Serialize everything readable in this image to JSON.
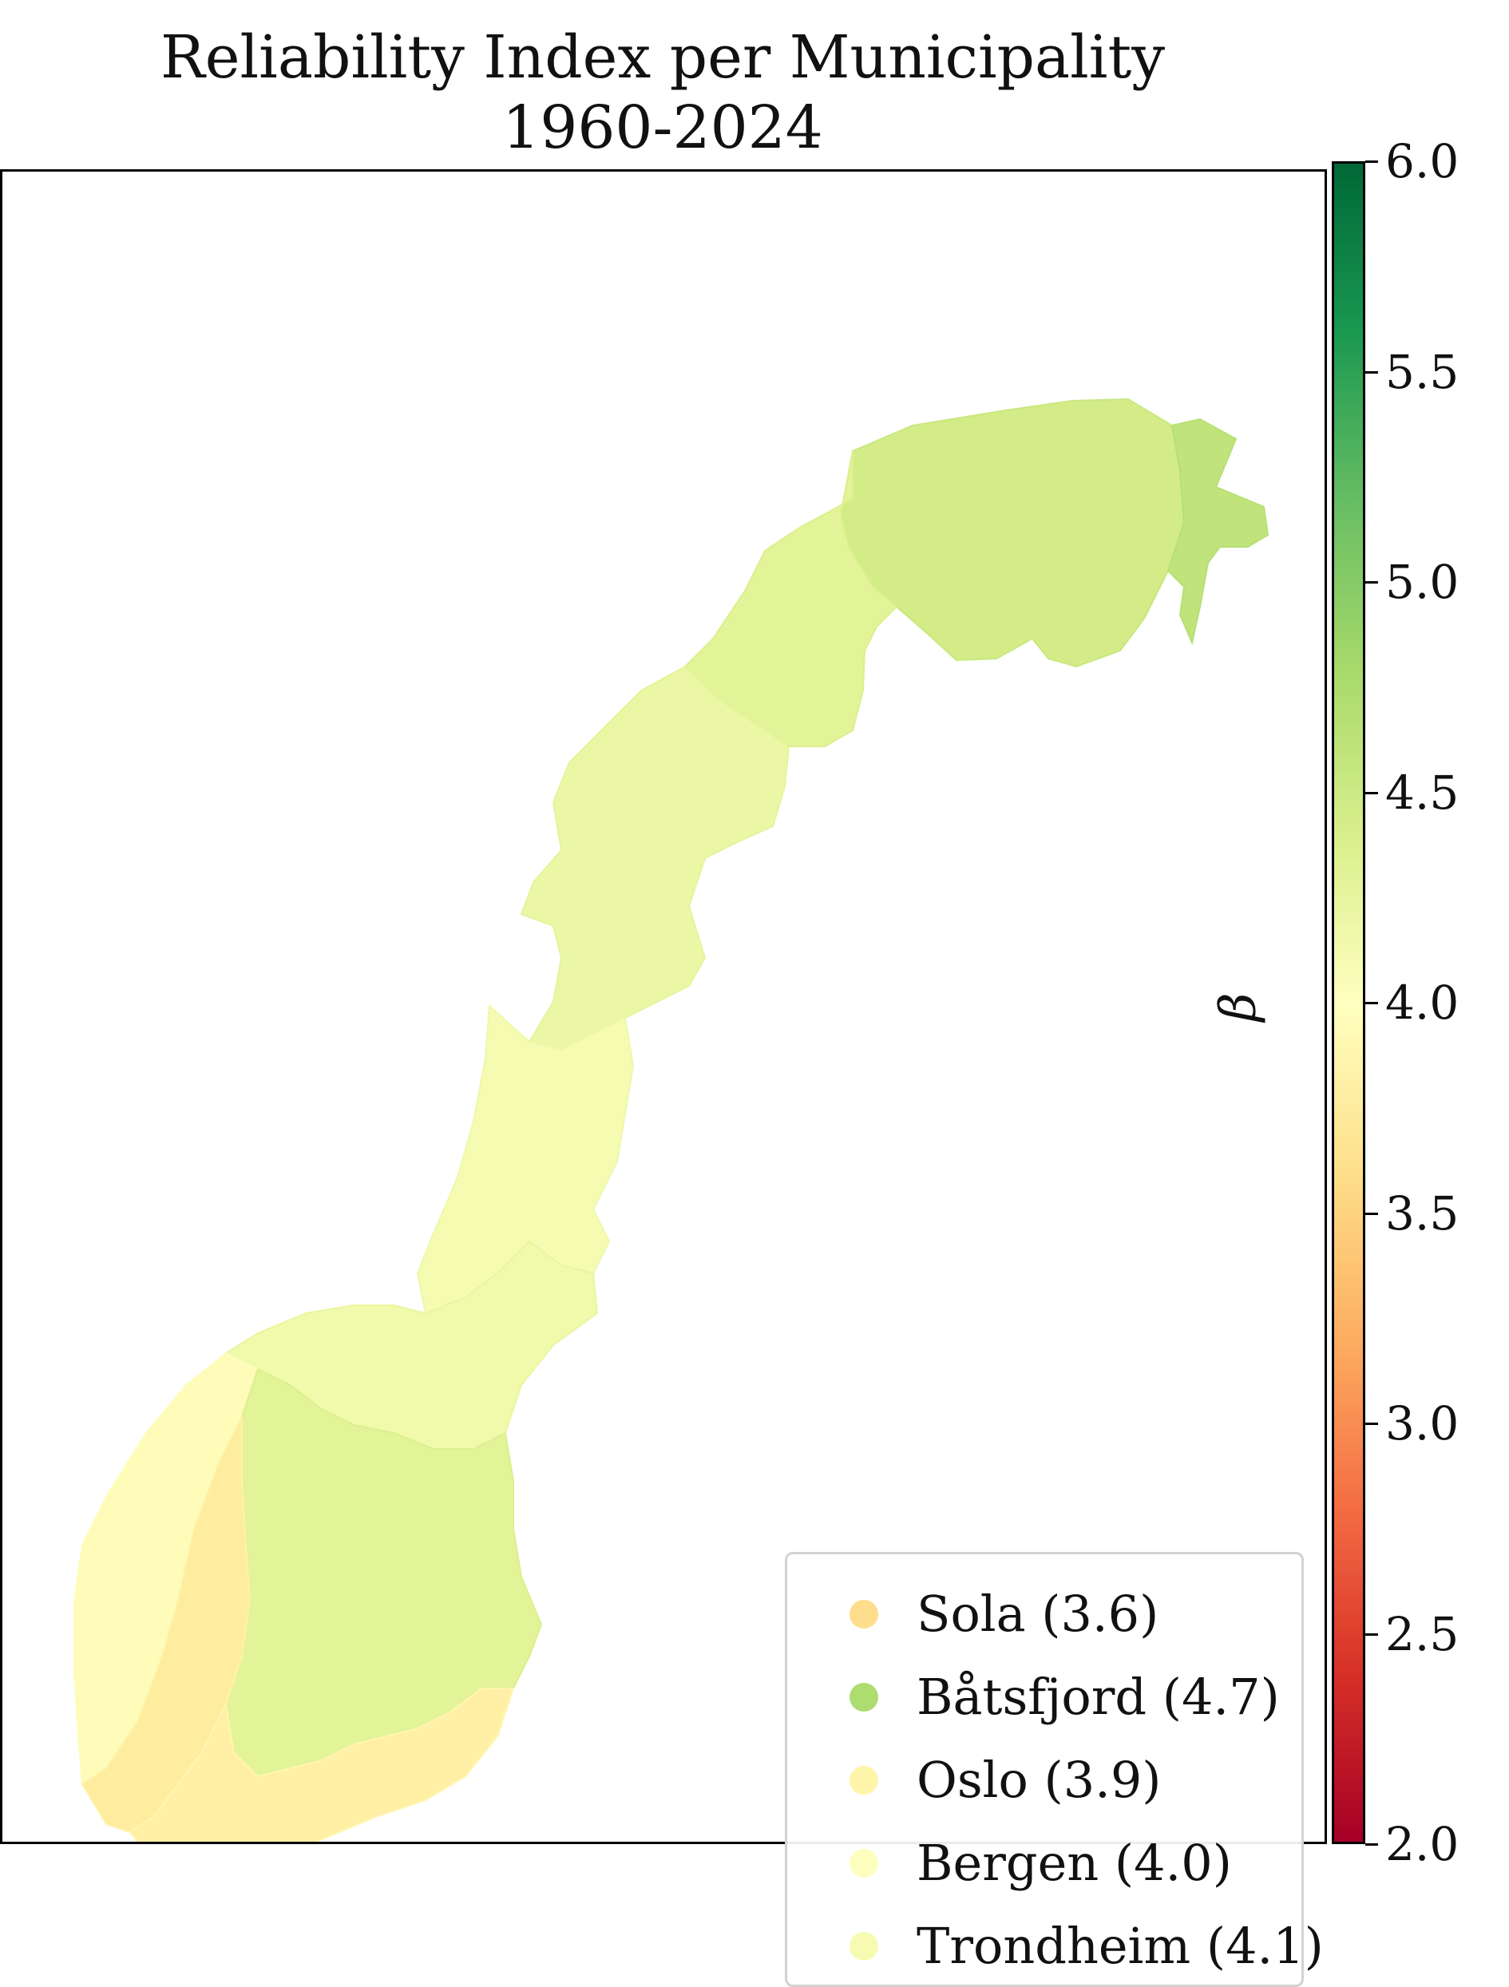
{
  "title": {
    "line1": "Reliability Index per Municipality",
    "line2": "1960-2024"
  },
  "colorbar": {
    "label": "β",
    "min": 2.0,
    "max": 6.0,
    "ticks": [
      "6.0",
      "5.5",
      "5.0",
      "4.5",
      "4.0",
      "3.5",
      "3.0",
      "2.5",
      "2.0"
    ],
    "colormap": [
      "#a50026",
      "#d73027",
      "#f46d43",
      "#fdae61",
      "#fee08b",
      "#ffffbf",
      "#d9ef8b",
      "#a6d96a",
      "#66bd63",
      "#1a9850",
      "#006837"
    ]
  },
  "legend": {
    "items": [
      {
        "label": "Sola (3.6)",
        "color": "#fedd8c"
      },
      {
        "label": "Båtsfjord (4.7)",
        "color": "#addc6f"
      },
      {
        "label": "Oslo (3.9)",
        "color": "#fef5ab"
      },
      {
        "label": "Bergen (4.0)",
        "color": "#fefebe"
      },
      {
        "label": "Trondheim (4.1)",
        "color": "#f6fbb1"
      }
    ]
  },
  "map": {
    "region": "Norway",
    "regions": [
      {
        "name": "finnmark",
        "value": 4.45
      },
      {
        "name": "east-finnmark",
        "value": 4.6
      },
      {
        "name": "troms",
        "value": 4.3
      },
      {
        "name": "nordland-north",
        "value": 4.2
      },
      {
        "name": "nordland-south",
        "value": 4.1
      },
      {
        "name": "trondelag",
        "value": 4.15
      },
      {
        "name": "west-coast",
        "value": 3.95
      },
      {
        "name": "innlandet",
        "value": 4.3
      },
      {
        "name": "southwest",
        "value": 3.75
      },
      {
        "name": "south",
        "value": 3.8
      }
    ]
  }
}
